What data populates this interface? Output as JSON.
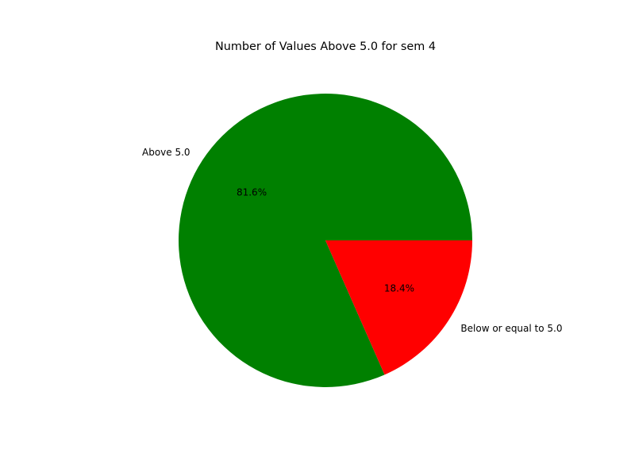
{
  "chart_data": {
    "type": "pie",
    "title": "Number of Values Above 5.0 for sem 4",
    "labels": [
      "Above 5.0",
      "Below or equal to 5.0"
    ],
    "values": [
      81.6,
      18.4
    ],
    "percent_labels": [
      "81.6%",
      "18.4%"
    ],
    "colors": [
      "#008000",
      "#ff0000"
    ],
    "start_angle_deg": 0,
    "direction": "counterclockwise",
    "legend": "none"
  }
}
